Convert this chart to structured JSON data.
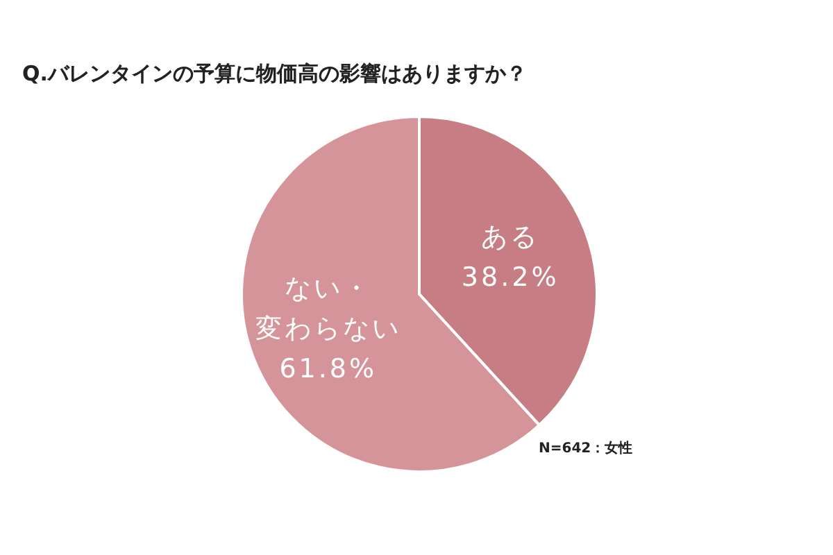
{
  "chart_data": {
    "type": "pie",
    "title": "Q.バレンタインの予算に物価高の影響はありますか？",
    "categories": [
      "ある",
      "ない・変わらない"
    ],
    "values": [
      38.2,
      61.8
    ],
    "colors": [
      "#c67e84",
      "#d59499"
    ],
    "value_labels": [
      "38.2%",
      "61.8%"
    ],
    "legend": false,
    "annotations": [
      "N=642：女性"
    ]
  }
}
